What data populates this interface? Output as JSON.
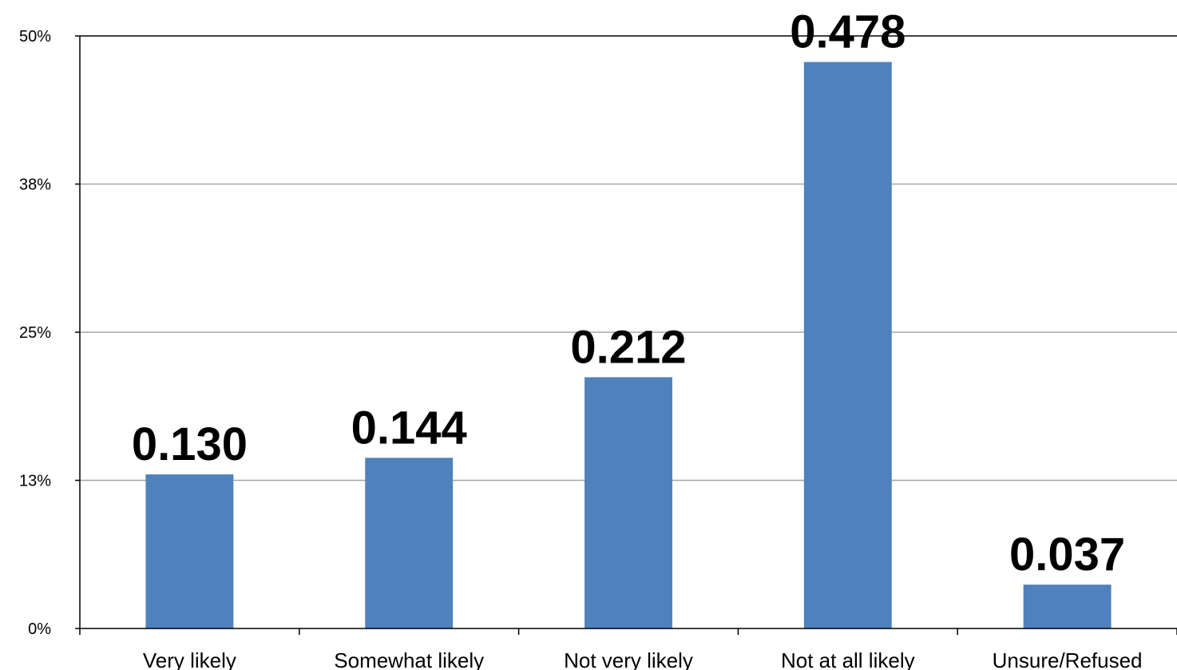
{
  "chart_data": {
    "type": "bar",
    "title": "",
    "xlabel": "",
    "ylabel": "",
    "categories": [
      "Very likely",
      "Somewhat likely",
      "Not very likely",
      "Not at all likely",
      "Unsure/Refused"
    ],
    "values": [
      0.13,
      0.144,
      0.212,
      0.478,
      0.037
    ],
    "data_labels": [
      "0.130",
      "0.144",
      "0.212",
      "0.478",
      "0.037"
    ],
    "ylim": [
      0,
      0.5
    ],
    "yticks": [
      0,
      0.125,
      0.25,
      0.375,
      0.5
    ],
    "ytick_labels": [
      "0%",
      "13%",
      "25%",
      "38%",
      "50%"
    ],
    "grid": true,
    "legend": "none",
    "colors": {
      "bar": "#4f81bd",
      "grid": "#a6a6a6",
      "axis": "#000000"
    }
  }
}
